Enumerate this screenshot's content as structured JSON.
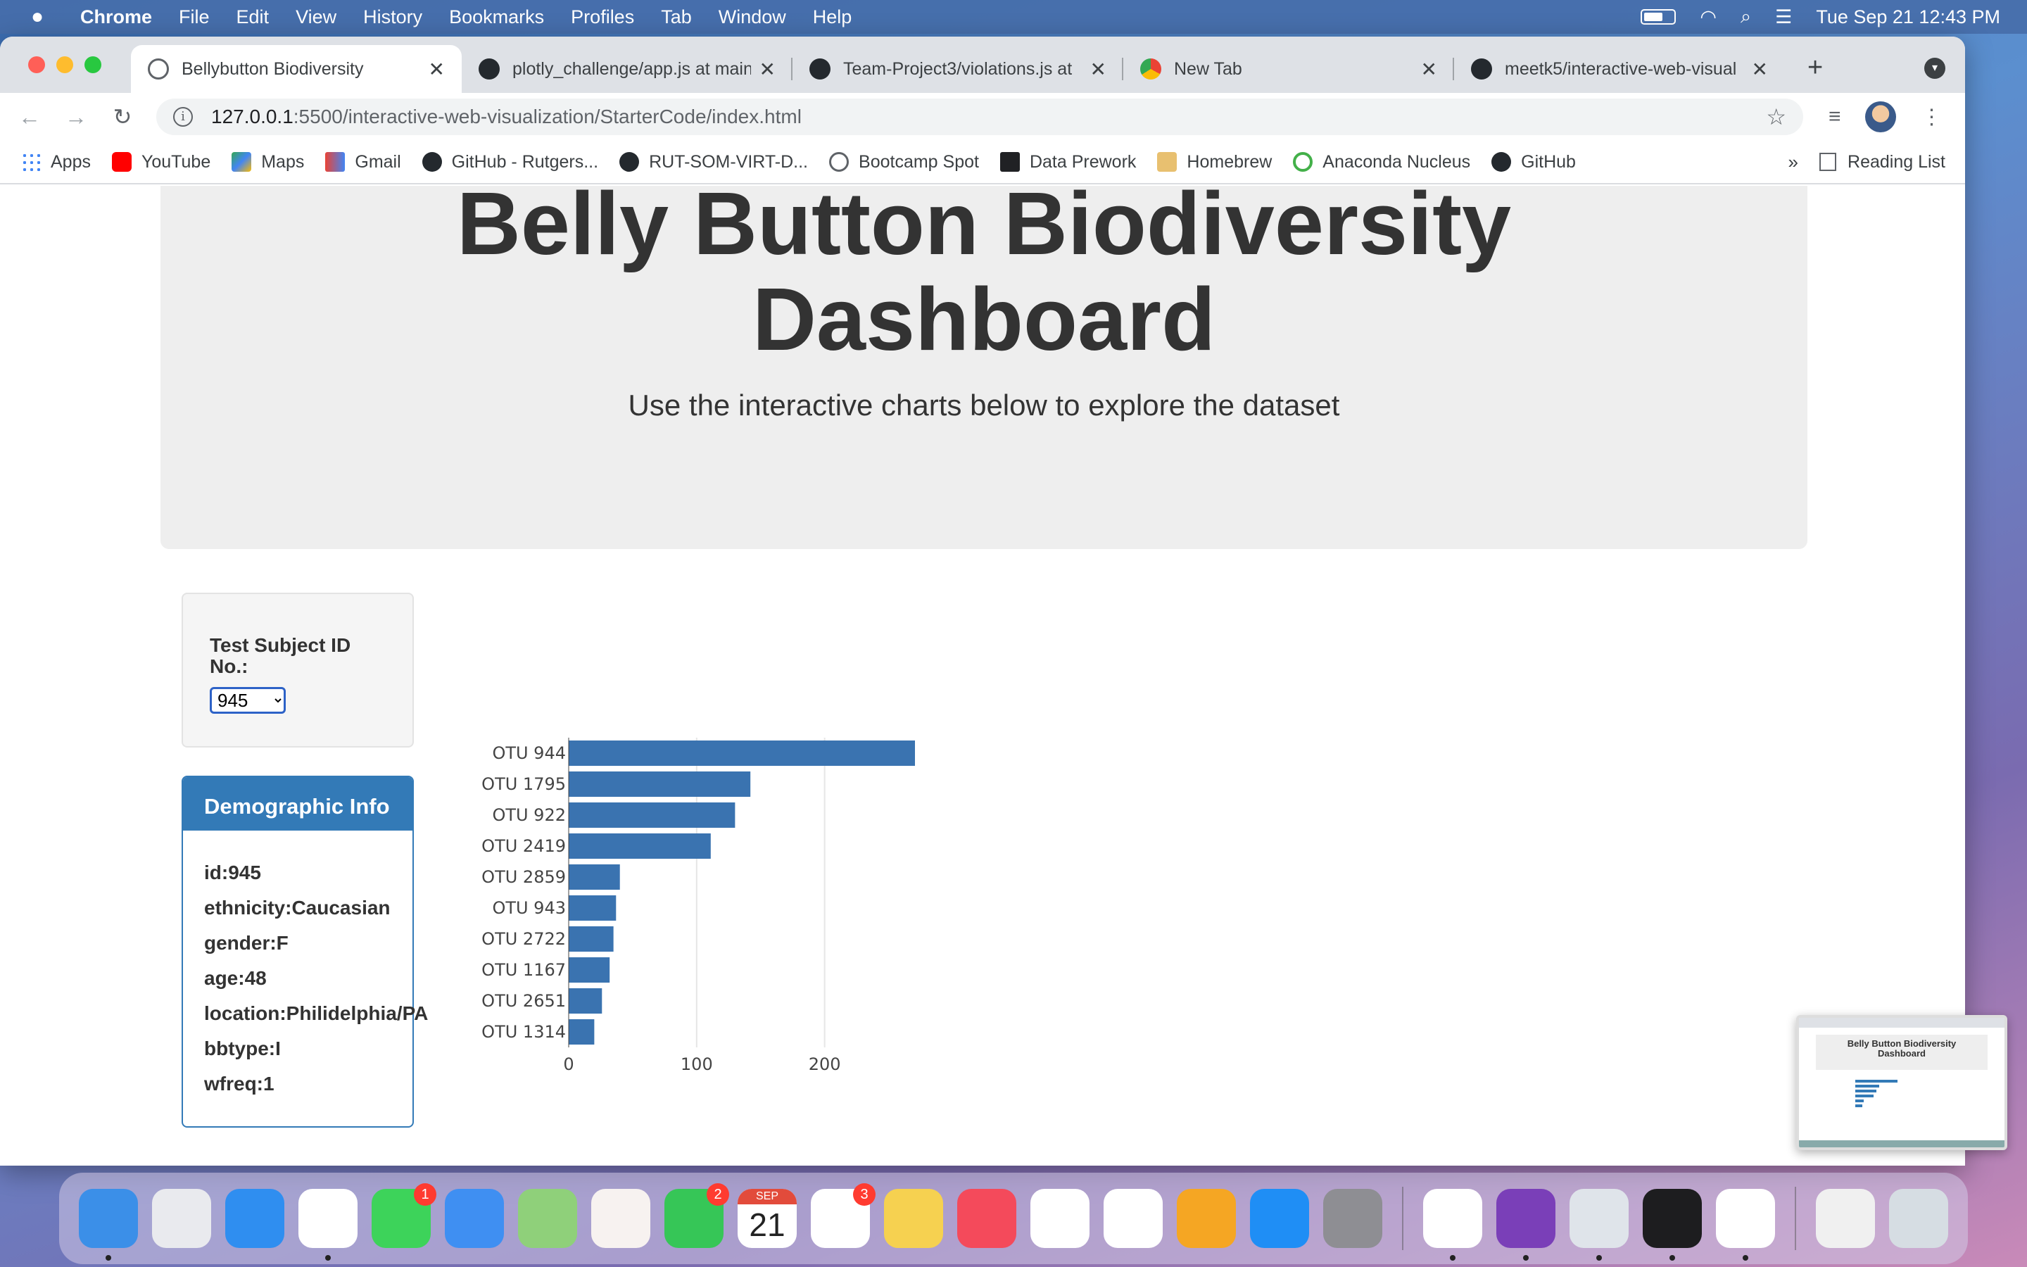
{
  "menubar": {
    "app": "Chrome",
    "items": [
      "File",
      "Edit",
      "View",
      "History",
      "Bookmarks",
      "Profiles",
      "Tab",
      "Window",
      "Help"
    ],
    "clock": "Tue Sep 21  12:43 PM"
  },
  "tabs": [
    {
      "label": "Bellybutton Biodiversity",
      "icon": "globe-icon",
      "active": true
    },
    {
      "label": "plotly_challenge/app.js at main",
      "icon": "github-icon"
    },
    {
      "label": "Team-Project3/violations.js at",
      "icon": "github-icon"
    },
    {
      "label": "New Tab",
      "icon": "chrome-icon"
    },
    {
      "label": "meetk5/interactive-web-visual",
      "icon": "github-icon"
    }
  ],
  "address_bar": {
    "host": "127.0.0.1",
    "path": ":5500/interactive-web-visualization/StarterCode/index.html"
  },
  "bookmarks": [
    {
      "label": "Apps",
      "icon": "apps"
    },
    {
      "label": "YouTube",
      "icon": "yt"
    },
    {
      "label": "Maps",
      "icon": "maps"
    },
    {
      "label": "Gmail",
      "icon": "gmail"
    },
    {
      "label": "GitHub - Rutgers...",
      "icon": "github"
    },
    {
      "label": "RUT-SOM-VIRT-D...",
      "icon": "github"
    },
    {
      "label": "Bootcamp Spot",
      "icon": "globe"
    },
    {
      "label": "Data Prework",
      "icon": "book"
    },
    {
      "label": "Homebrew",
      "icon": "brew"
    },
    {
      "label": "Anaconda Nucleus",
      "icon": "anaconda"
    },
    {
      "label": "GitHub",
      "icon": "github"
    }
  ],
  "bookmarks_more": "»",
  "reading_list": "Reading List",
  "page": {
    "title_line1": "Belly Button Biodiversity",
    "title_line2": "Dashboard",
    "subtitle": "Use the interactive charts below to explore the dataset",
    "select_label_line1": "Test Subject ID",
    "select_label_line2": "No.:",
    "selected_id": "945",
    "demo_title": "Demographic Info",
    "demographics": [
      "id:945",
      "ethnicity:Caucasian",
      "gender:F",
      "age:48",
      "location:Philidelphia/PA",
      "bbtype:I",
      "wfreq:1"
    ]
  },
  "chart_data": {
    "type": "bar",
    "orientation": "horizontal",
    "categories": [
      "OTU 944",
      "OTU 1795",
      "OTU 922",
      "OTU 2419",
      "OTU 2859",
      "OTU 943",
      "OTU 2722",
      "OTU 1167",
      "OTU 2651",
      "OTU 1314"
    ],
    "values": [
      275,
      142,
      130,
      111,
      40,
      37,
      35,
      32,
      26,
      20
    ],
    "xticks": [
      0,
      100,
      200
    ],
    "xlim": [
      0,
      275
    ],
    "grid": true,
    "color": "#3a73b0"
  },
  "preview": {
    "title_line1": "Belly Button Biodiversity",
    "title_line2": "Dashboard"
  },
  "dock": [
    {
      "name": "finder-icon",
      "color": "#3b8fe8",
      "dot": true
    },
    {
      "name": "launchpad-icon",
      "color": "#e9eaee"
    },
    {
      "name": "safari-icon",
      "color": "#2f8ef0"
    },
    {
      "name": "chrome-icon",
      "color": "#ffffff",
      "dot": true
    },
    {
      "name": "messages-icon",
      "color": "#3dd35a",
      "badge": "1"
    },
    {
      "name": "mail-icon",
      "color": "#3f8ff2"
    },
    {
      "name": "maps-icon",
      "color": "#8fd07a"
    },
    {
      "name": "photos-icon",
      "color": "#f7f2f0"
    },
    {
      "name": "facetime-icon",
      "color": "#36c657",
      "badge": "2"
    },
    {
      "name": "calendar-icon",
      "color": "#ffffff",
      "calendar": true,
      "month": "SEP",
      "day": "21"
    },
    {
      "name": "reminders-icon",
      "color": "#ffffff",
      "badge": "3"
    },
    {
      "name": "notes-icon",
      "color": "#f6d150"
    },
    {
      "name": "news-icon",
      "color": "#f44a5b"
    },
    {
      "name": "keynote-icon",
      "color": "#ffffff"
    },
    {
      "name": "numbers-icon",
      "color": "#ffffff"
    },
    {
      "name": "pages-icon",
      "color": "#f5a623"
    },
    {
      "name": "app-store-icon",
      "color": "#1f8ef5"
    },
    {
      "name": "system-preferences-icon",
      "color": "#8e8e93"
    },
    {
      "separator": true
    },
    {
      "name": "vscode-icon",
      "color": "#ffffff",
      "dot": true
    },
    {
      "name": "github-desktop-icon",
      "color": "#7a3fb8",
      "dot": true
    },
    {
      "name": "postgres-icon",
      "color": "#dfe4ea",
      "dot": true
    },
    {
      "name": "terminal-icon",
      "color": "#1d1d1f",
      "dot": true
    },
    {
      "name": "slack-icon",
      "color": "#ffffff",
      "dot": true
    },
    {
      "separator": true
    },
    {
      "name": "csv-file-icon",
      "color": "#f0f0f0"
    },
    {
      "name": "trash-icon",
      "color": "#d6dde3"
    }
  ]
}
